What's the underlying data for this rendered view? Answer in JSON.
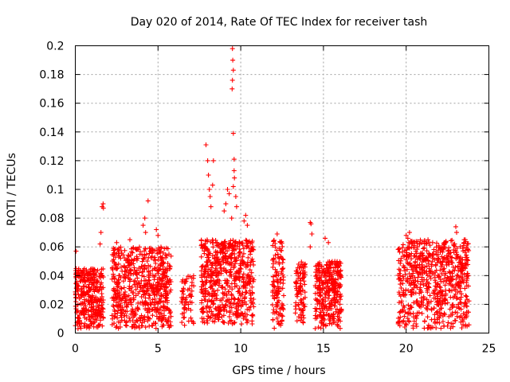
{
  "chart_data": {
    "type": "scatter",
    "title": "Day 020 of 2014, Rate Of TEC Index for receiver tash",
    "xlabel": "GPS time / hours",
    "ylabel": "ROTI / TECUs",
    "xlim": [
      0,
      25
    ],
    "ylim": [
      0,
      0.2
    ],
    "xticks": [
      "0",
      "5",
      "10",
      "15",
      "20",
      "25"
    ],
    "yticks": [
      "0",
      "0.02",
      "0.04",
      "0.06",
      "0.08",
      "0.1",
      "0.12",
      "0.14",
      "0.16",
      "0.18",
      "0.2"
    ],
    "grid": true,
    "marker": "+",
    "color": "#ff0000",
    "series": [
      {
        "name": "ROTI",
        "clusters": [
          {
            "x": [
              0.0,
              1.7
            ],
            "y": [
              0.003,
              0.045
            ],
            "n": 340
          },
          {
            "x": [
              2.2,
              5.8
            ],
            "y": [
              0.003,
              0.06
            ],
            "n": 620
          },
          {
            "x": [
              6.4,
              7.2
            ],
            "y": [
              0.005,
              0.04
            ],
            "n": 60
          },
          {
            "x": [
              7.6,
              10.8
            ],
            "y": [
              0.005,
              0.065
            ],
            "n": 600
          },
          {
            "x": [
              11.9,
              12.6
            ],
            "y": [
              0.003,
              0.065
            ],
            "n": 120
          },
          {
            "x": [
              13.3,
              13.9
            ],
            "y": [
              0.005,
              0.05
            ],
            "n": 90
          },
          {
            "x": [
              14.5,
              16.1
            ],
            "y": [
              0.003,
              0.05
            ],
            "n": 320
          },
          {
            "x": [
              19.5,
              23.8
            ],
            "y": [
              0.003,
              0.065
            ],
            "n": 700
          }
        ],
        "points": [
          {
            "x": 0.05,
            "y": 0.057
          },
          {
            "x": 1.5,
            "y": 0.062
          },
          {
            "x": 1.55,
            "y": 0.07
          },
          {
            "x": 1.62,
            "y": 0.088
          },
          {
            "x": 1.68,
            "y": 0.09
          },
          {
            "x": 1.7,
            "y": 0.087
          },
          {
            "x": 2.5,
            "y": 0.063
          },
          {
            "x": 3.3,
            "y": 0.065
          },
          {
            "x": 4.1,
            "y": 0.075
          },
          {
            "x": 4.2,
            "y": 0.08
          },
          {
            "x": 4.25,
            "y": 0.07
          },
          {
            "x": 4.4,
            "y": 0.092
          },
          {
            "x": 4.9,
            "y": 0.072
          },
          {
            "x": 5.0,
            "y": 0.068
          },
          {
            "x": 7.9,
            "y": 0.131
          },
          {
            "x": 8.0,
            "y": 0.12
          },
          {
            "x": 8.05,
            "y": 0.11
          },
          {
            "x": 8.1,
            "y": 0.1
          },
          {
            "x": 8.15,
            "y": 0.095
          },
          {
            "x": 8.2,
            "y": 0.088
          },
          {
            "x": 8.3,
            "y": 0.103
          },
          {
            "x": 8.35,
            "y": 0.12
          },
          {
            "x": 9.0,
            "y": 0.085
          },
          {
            "x": 9.1,
            "y": 0.09
          },
          {
            "x": 9.2,
            "y": 0.1
          },
          {
            "x": 9.3,
            "y": 0.097
          },
          {
            "x": 9.45,
            "y": 0.08
          },
          {
            "x": 9.5,
            "y": 0.198
          },
          {
            "x": 9.52,
            "y": 0.19
          },
          {
            "x": 9.55,
            "y": 0.183
          },
          {
            "x": 9.5,
            "y": 0.176
          },
          {
            "x": 9.48,
            "y": 0.17
          },
          {
            "x": 9.55,
            "y": 0.139
          },
          {
            "x": 9.6,
            "y": 0.121
          },
          {
            "x": 9.6,
            "y": 0.113
          },
          {
            "x": 9.62,
            "y": 0.108
          },
          {
            "x": 9.55,
            "y": 0.102
          },
          {
            "x": 9.7,
            "y": 0.095
          },
          {
            "x": 9.75,
            "y": 0.088
          },
          {
            "x": 10.2,
            "y": 0.078
          },
          {
            "x": 10.3,
            "y": 0.082
          },
          {
            "x": 10.4,
            "y": 0.075
          },
          {
            "x": 12.2,
            "y": 0.069
          },
          {
            "x": 13.5,
            "y": 0.048
          },
          {
            "x": 14.2,
            "y": 0.077
          },
          {
            "x": 14.25,
            "y": 0.076
          },
          {
            "x": 14.3,
            "y": 0.069
          },
          {
            "x": 14.2,
            "y": 0.06
          },
          {
            "x": 15.1,
            "y": 0.066
          },
          {
            "x": 15.3,
            "y": 0.063
          },
          {
            "x": 20.0,
            "y": 0.068
          },
          {
            "x": 20.2,
            "y": 0.07
          },
          {
            "x": 20.1,
            "y": 0.066
          },
          {
            "x": 21.6,
            "y": 0.063
          },
          {
            "x": 22.3,
            "y": 0.063
          },
          {
            "x": 23.0,
            "y": 0.074
          },
          {
            "x": 23.05,
            "y": 0.07
          },
          {
            "x": 23.5,
            "y": 0.063
          },
          {
            "x": 23.7,
            "y": 0.062
          }
        ]
      }
    ]
  }
}
